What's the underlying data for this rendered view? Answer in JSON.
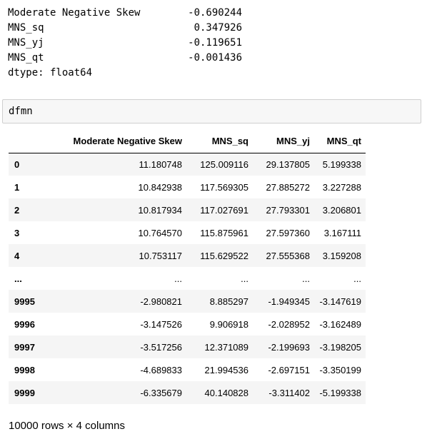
{
  "series_output": {
    "rows": [
      {
        "name": "Moderate Negative Skew",
        "value": "-0.690244"
      },
      {
        "name": "MNS_sq",
        "value": "0.347926"
      },
      {
        "name": "MNS_yj",
        "value": "-0.119651"
      },
      {
        "name": "MNS_qt",
        "value": "-0.001436"
      }
    ],
    "dtype_line": "dtype: float64"
  },
  "input_cell": {
    "code": "dfmn"
  },
  "dataframe": {
    "index_header": "",
    "columns": [
      "Moderate Negative Skew",
      "MNS_sq",
      "MNS_yj",
      "MNS_qt"
    ],
    "rows": [
      {
        "index": "0",
        "cells": [
          "11.180748",
          "125.009116",
          "29.137805",
          "5.199338"
        ]
      },
      {
        "index": "1",
        "cells": [
          "10.842938",
          "117.569305",
          "27.885272",
          "3.227288"
        ]
      },
      {
        "index": "2",
        "cells": [
          "10.817934",
          "117.027691",
          "27.793301",
          "3.206801"
        ]
      },
      {
        "index": "3",
        "cells": [
          "10.764570",
          "115.875961",
          "27.597360",
          "3.167111"
        ]
      },
      {
        "index": "4",
        "cells": [
          "10.753117",
          "115.629522",
          "27.555368",
          "3.159208"
        ]
      },
      {
        "index": "...",
        "cells": [
          "...",
          "...",
          "...",
          "..."
        ]
      },
      {
        "index": "9995",
        "cells": [
          "-2.980821",
          "8.885297",
          "-1.949345",
          "-3.147619"
        ]
      },
      {
        "index": "9996",
        "cells": [
          "-3.147526",
          "9.906918",
          "-2.028952",
          "-3.162489"
        ]
      },
      {
        "index": "9997",
        "cells": [
          "-3.517256",
          "12.371089",
          "-2.199693",
          "-3.198205"
        ]
      },
      {
        "index": "9998",
        "cells": [
          "-4.689833",
          "21.994536",
          "-2.697151",
          "-3.350199"
        ]
      },
      {
        "index": "9999",
        "cells": [
          "-6.335679",
          "40.140828",
          "-3.311402",
          "-5.199338"
        ]
      }
    ],
    "shape_text": "10000 rows × 4 columns"
  },
  "colors": {
    "input_background": "#f7f7f7",
    "input_border": "#cfcfcf",
    "row_stripe": "#f5f5f5"
  }
}
